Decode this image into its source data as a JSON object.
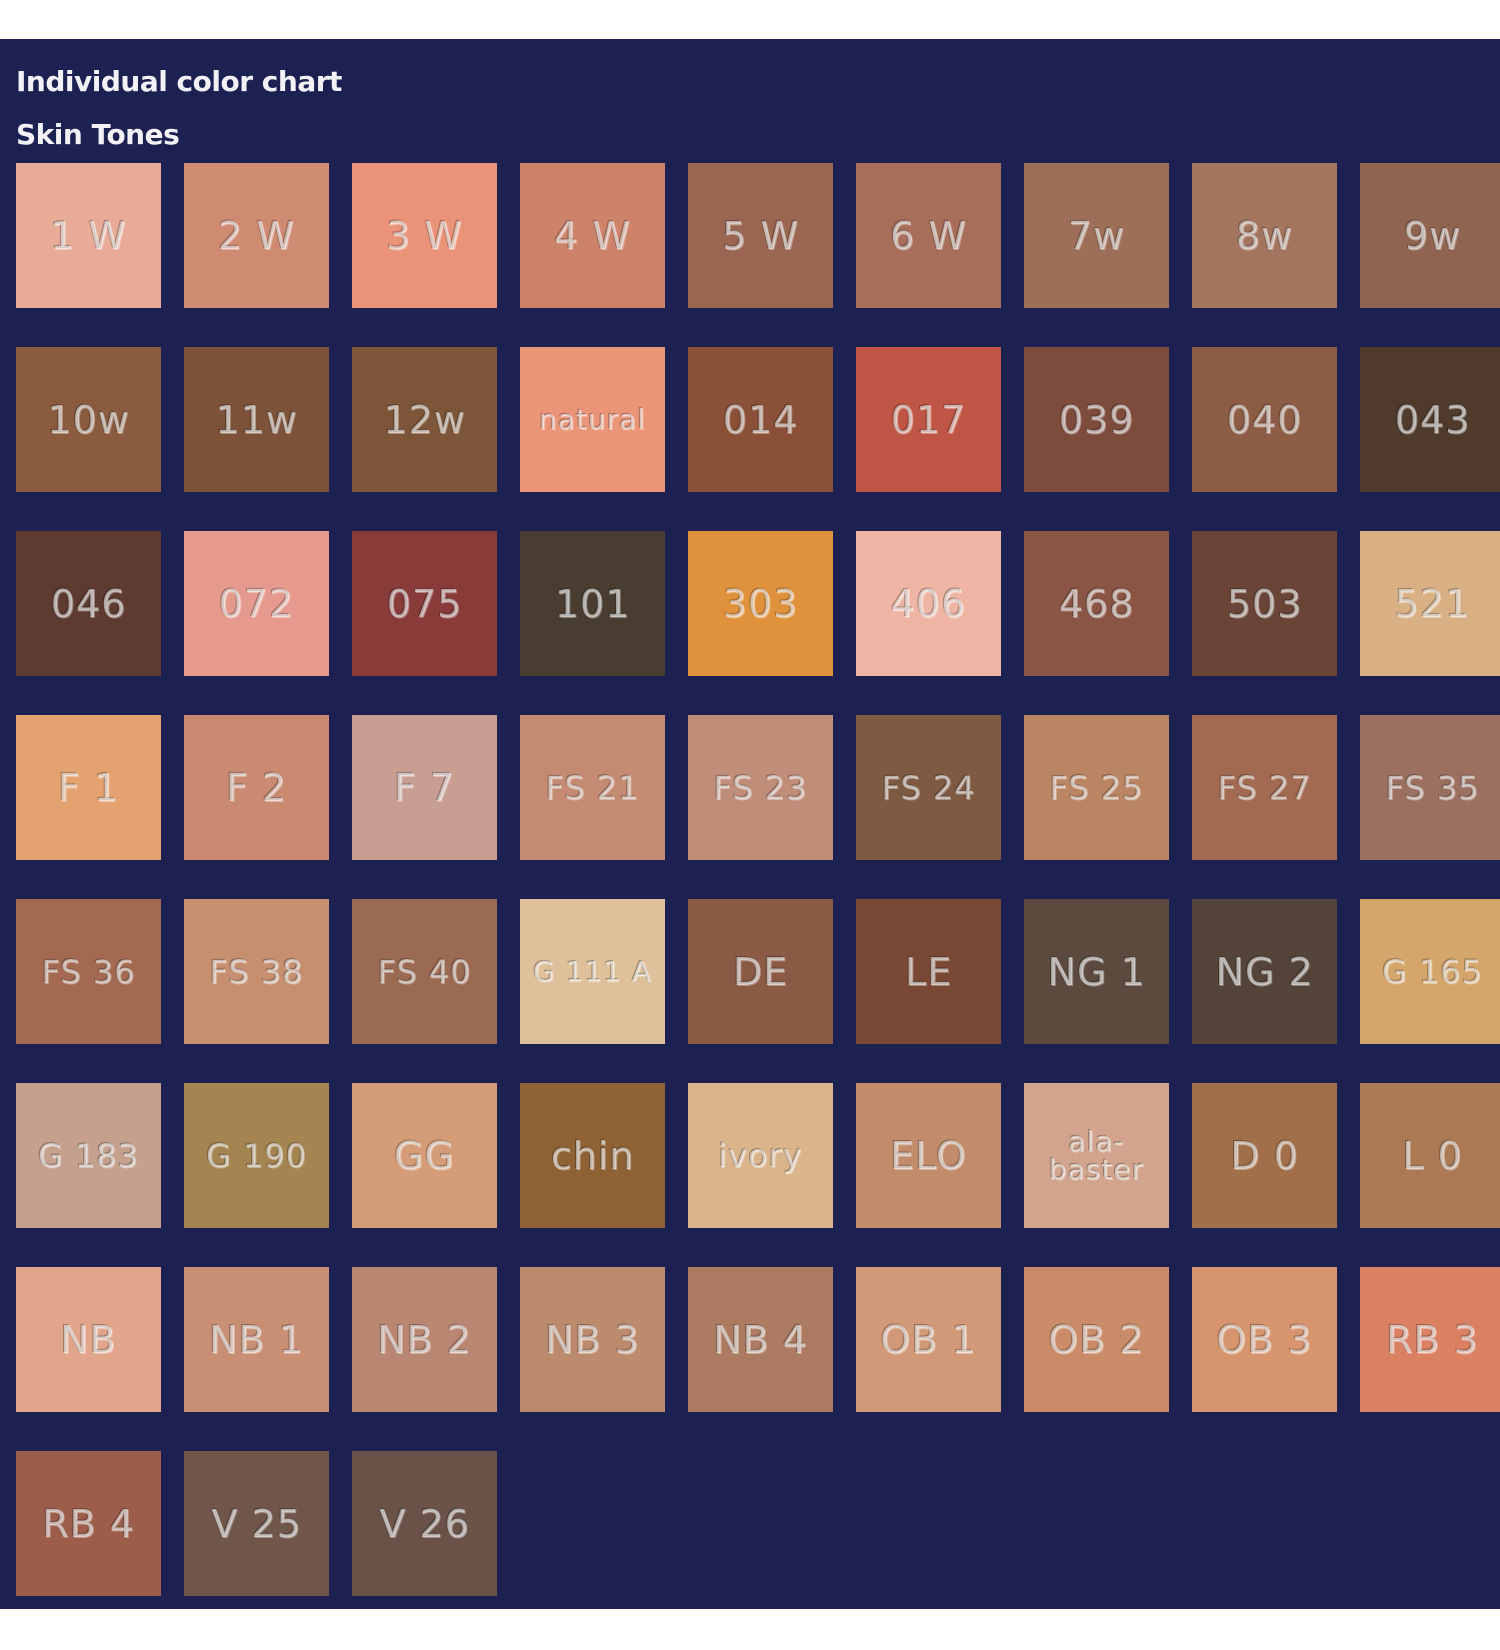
{
  "header": {
    "title": "Individual color chart",
    "subtitle": "Skin Tones"
  },
  "swatches": [
    {
      "label": "1 W",
      "color": "#e7ab97"
    },
    {
      "label": "2 W",
      "color": "#cf8a72"
    },
    {
      "label": "3 W",
      "color": "#ea9378"
    },
    {
      "label": "4 W",
      "color": "#cd836a"
    },
    {
      "label": "5 W",
      "color": "#9a6651"
    },
    {
      "label": "6 W",
      "color": "#a76e5a"
    },
    {
      "label": "7w",
      "color": "#9d6f58"
    },
    {
      "label": "8w",
      "color": "#a3745e"
    },
    {
      "label": "9w",
      "color": "#8f6551"
    },
    {
      "label": "10w",
      "color": "#8a5b3f"
    },
    {
      "label": "11w",
      "color": "#7c5238"
    },
    {
      "label": "12w",
      "color": "#7d5538"
    },
    {
      "label": "natural",
      "color": "#ea9478"
    },
    {
      "label": "014",
      "color": "#8a5138"
    },
    {
      "label": "017",
      "color": "#bf5544"
    },
    {
      "label": "039",
      "color": "#7e4c3d"
    },
    {
      "label": "040",
      "color": "#8c5c44"
    },
    {
      "label": "043",
      "color": "#4f3a2c"
    },
    {
      "label": "046",
      "color": "#5d3b30"
    },
    {
      "label": "072",
      "color": "#e59a8d"
    },
    {
      "label": "075",
      "color": "#883b39"
    },
    {
      "label": "101",
      "color": "#483d30"
    },
    {
      "label": "303",
      "color": "#e0913c"
    },
    {
      "label": "406",
      "color": "#efb5a4"
    },
    {
      "label": "468",
      "color": "#8a5544"
    },
    {
      "label": "503",
      "color": "#6a4537"
    },
    {
      "label": "521",
      "color": "#d9b083"
    },
    {
      "label": "F 1",
      "color": "#e5a271"
    },
    {
      "label": "F 2",
      "color": "#ca8a71"
    },
    {
      "label": "F 7",
      "color": "#c89e93"
    },
    {
      "label": "FS 21",
      "color": "#c48b72"
    },
    {
      "label": "FS 23",
      "color": "#c08d79"
    },
    {
      "label": "FS 24",
      "color": "#7e5a42"
    },
    {
      "label": "FS 25",
      "color": "#ba8563"
    },
    {
      "label": "FS 27",
      "color": "#a16a51"
    },
    {
      "label": "FS 35",
      "color": "#9c7061"
    },
    {
      "label": "FS 36",
      "color": "#a36a51"
    },
    {
      "label": "FS 38",
      "color": "#c58f70"
    },
    {
      "label": "FS 40",
      "color": "#9b6a52"
    },
    {
      "label": "G 111 A",
      "color": "#dec09a"
    },
    {
      "label": "DE",
      "color": "#8a5a45"
    },
    {
      "label": "LE",
      "color": "#7a4935"
    },
    {
      "label": "NG 1",
      "color": "#5c4a3e"
    },
    {
      "label": "NG 2",
      "color": "#544338"
    },
    {
      "label": "G 165",
      "color": "#d4a66b"
    },
    {
      "label": "G 183",
      "color": "#c4a08d"
    },
    {
      "label": "G 190",
      "color": "#a48551"
    },
    {
      "label": "GG",
      "color": "#d49d77"
    },
    {
      "label": "chin",
      "color": "#8e6235"
    },
    {
      "label": "ivory",
      "color": "#dab48b"
    },
    {
      "label": "ELO",
      "color": "#c28c6c"
    },
    {
      "label": "ala-baster",
      "color": "#d2a48d"
    },
    {
      "label": "D 0",
      "color": "#a16f49"
    },
    {
      "label": "L 0",
      "color": "#ab7a55"
    },
    {
      "label": "NB",
      "color": "#e0a58b"
    },
    {
      "label": "NB 1",
      "color": "#c88f74"
    },
    {
      "label": "NB 2",
      "color": "#b98672"
    },
    {
      "label": "NB 3",
      "color": "#bc8a6c"
    },
    {
      "label": "NB 4",
      "color": "#ac7b62"
    },
    {
      "label": "OB 1",
      "color": "#d19977"
    },
    {
      "label": "OB 2",
      "color": "#c98b68"
    },
    {
      "label": "OB 3",
      "color": "#d6956e"
    },
    {
      "label": "RB 3",
      "color": "#da8164"
    },
    {
      "label": "RB 4",
      "color": "#9c5d4a"
    },
    {
      "label": "V 25",
      "color": "#70564a"
    },
    {
      "label": "V 26",
      "color": "#6a5248"
    }
  ]
}
